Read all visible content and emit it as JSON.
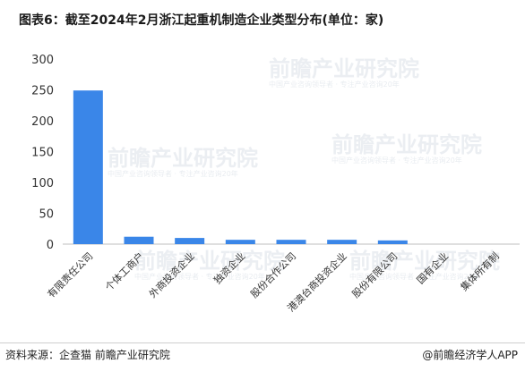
{
  "title": "图表6：截至2024年2月浙江起重机制造企业类型分布(单位：家)",
  "footer": {
    "source": "资料来源：企查猫 前瞻产业研究院",
    "brand": "@前瞻经济学人APP"
  },
  "watermark": {
    "text": "前瞻产业研究院",
    "subtext": "中国产业咨询领导者 · 专注产业咨询20年"
  },
  "colors": {
    "bar": "#3a86e8",
    "axis": "#bfbfbf"
  },
  "chart_data": {
    "type": "bar",
    "title": "图表6：截至2024年2月浙江起重机制造企业类型分布(单位：家)",
    "xlabel": "",
    "ylabel": "",
    "ylim": [
      0,
      300
    ],
    "yticks": [
      0,
      50,
      100,
      150,
      200,
      250,
      300
    ],
    "grid": false,
    "categories": [
      "有限责任公司",
      "个体工商户",
      "外商投资企业",
      "独资企业",
      "股份合作公司",
      "港澳台商投资企业",
      "股份有限公司",
      "国有企业",
      "集体所有制"
    ],
    "values": [
      249,
      12,
      10,
      7,
      7,
      7,
      6,
      0,
      0
    ]
  }
}
